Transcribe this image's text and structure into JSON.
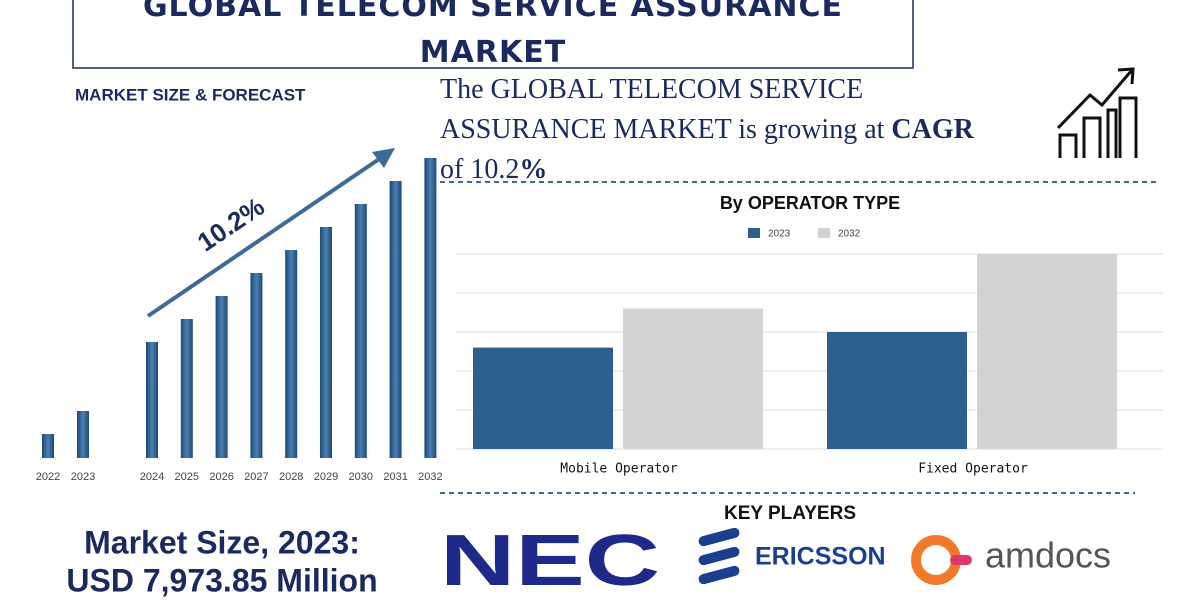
{
  "header": {
    "title": "GLOBAL TELECOM SERVICE ASSURANCE MARKET",
    "subtitle": "MARKET SIZE & FORECAST"
  },
  "cagr_text": {
    "parts": [
      "The GLOBAL  TELECOM SERVICE ASSURANCE MARKET is growing at ",
      "CAGR",
      " of 10.2",
      "%"
    ]
  },
  "chart_data": [
    {
      "type": "bar",
      "categories": [
        "2022",
        "2023",
        "2024",
        "2025",
        "2026",
        "2027",
        "2028",
        "2029",
        "2030",
        "2031",
        "2032"
      ],
      "values": [
        24,
        47,
        116,
        139,
        162,
        185,
        208,
        231,
        254,
        277,
        300
      ],
      "color": "#2c5f8e",
      "ylim": [
        0,
        300
      ],
      "annotation": "10.2%"
    },
    {
      "type": "grouped_bar",
      "title": "By OPERATOR TYPE",
      "categories": [
        "Mobile Operator",
        "Fixed Operator"
      ],
      "series": [
        {
          "name": "2023",
          "color": "#2c5f8e",
          "values": [
            2.6,
            3.0
          ]
        },
        {
          "name": "2032",
          "color": "#d3d3d3",
          "values": [
            3.6,
            5.0
          ]
        }
      ],
      "ylim": [
        0,
        5
      ],
      "yticks": [
        0,
        1,
        2,
        3,
        4,
        5
      ],
      "grid": true
    }
  ],
  "key_players": {
    "title": "KEY PLAYERS",
    "companies": [
      "NEC",
      "ERICSSON",
      "amdocs"
    ]
  },
  "market_size": {
    "label": "Market Size, 2023:",
    "value": "USD 7,973.85 Million"
  }
}
